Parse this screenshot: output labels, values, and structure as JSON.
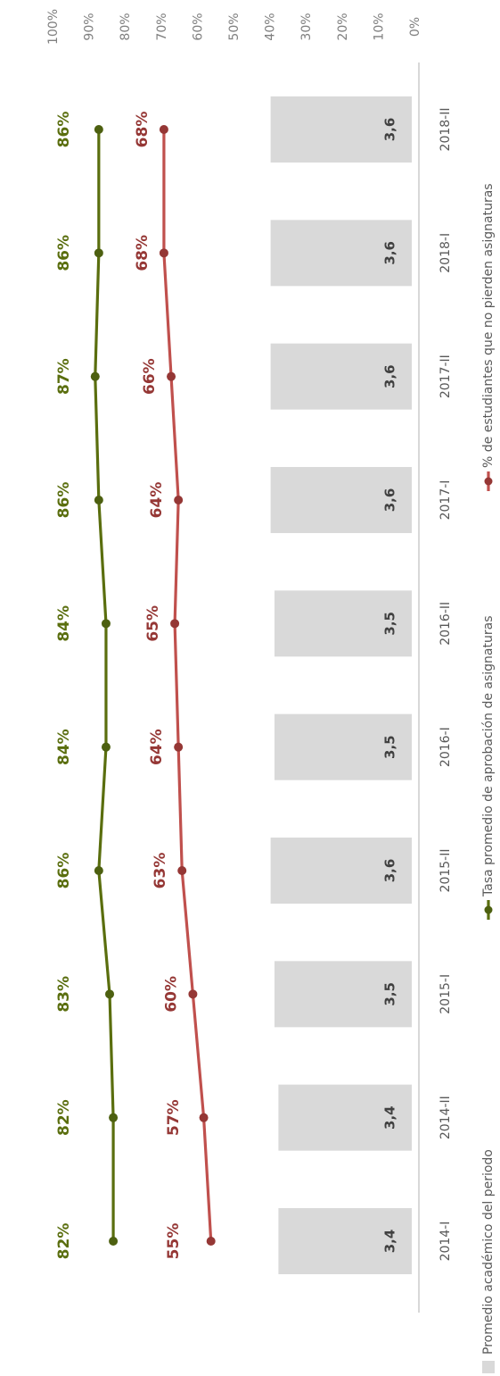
{
  "chart_data": {
    "type": "bar+line",
    "orientation": "rotated-90",
    "categories": [
      "2014-I",
      "2014-II",
      "2015-I",
      "2015-II",
      "2016-I",
      "2016-II",
      "2017-I",
      "2017-II",
      "2018-I",
      "2018-II"
    ],
    "bars": {
      "name": "Promedio académico del periodo",
      "values": [
        3.4,
        3.4,
        3.5,
        3.6,
        3.5,
        3.5,
        3.6,
        3.6,
        3.6,
        3.6
      ],
      "labels": [
        "3,4",
        "3,4",
        "3,5",
        "3,6",
        "3,5",
        "3,5",
        "3,6",
        "3,6",
        "3,6",
        "3,6"
      ],
      "color": "#d9d9d9"
    },
    "series": [
      {
        "name": "Tasa promedio de aprobación de asignaturas",
        "values": [
          82,
          82,
          83,
          86,
          84,
          84,
          86,
          87,
          86,
          86
        ],
        "labels": [
          "82%",
          "82%",
          "83%",
          "86%",
          "84%",
          "84%",
          "86%",
          "87%",
          "86%",
          "86%"
        ],
        "line_color": "#5a6e0e",
        "marker_color": "#4d6010"
      },
      {
        "name": "% de estudiantes que no pierden asignaturas",
        "values": [
          55,
          57,
          60,
          63,
          64,
          65,
          64,
          66,
          68,
          68
        ],
        "labels": [
          "55%",
          "57%",
          "60%",
          "63%",
          "64%",
          "65%",
          "64%",
          "66%",
          "68%",
          "68%"
        ],
        "line_color": "#c0504d",
        "marker_color": "#953735"
      }
    ],
    "value_axis": {
      "ticks": [
        "100%",
        "90%",
        "80%",
        "70%",
        "60%",
        "50%",
        "40%",
        "30%",
        "20%",
        "10%",
        "0%"
      ],
      "ylim": [
        0,
        100
      ]
    },
    "grid": false,
    "legend_position": "bottom"
  }
}
